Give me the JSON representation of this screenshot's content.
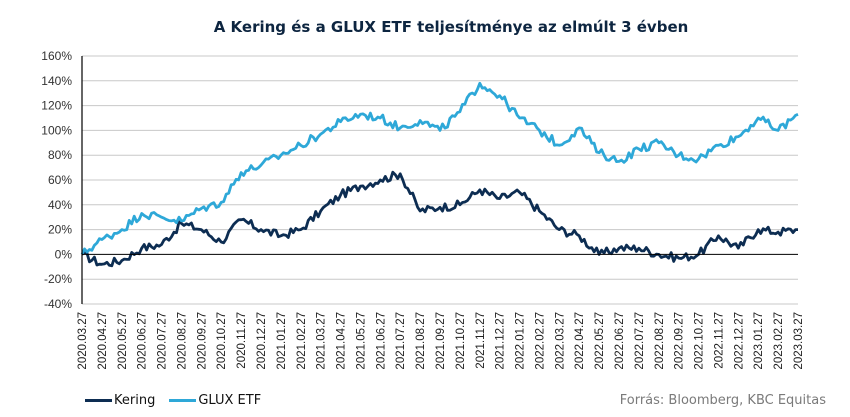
{
  "chart_data": {
    "type": "line",
    "title": "A Kering és a GLUX ETF teljesítménye  az elmúlt  3 évben",
    "xlabel": "",
    "ylabel": "",
    "ylim": [
      -40,
      160
    ],
    "y_ticks": [
      -40,
      -20,
      0,
      20,
      40,
      60,
      80,
      100,
      120,
      140,
      160
    ],
    "y_tick_format": "percent",
    "grid": true,
    "legend_position": "bottom-left",
    "x": [
      "2020.03.27",
      "2020.04.27",
      "2020.05.27",
      "2020.06.27",
      "2020.07.27",
      "2020.08.27",
      "2020.09.27",
      "2020.10.27",
      "2020.11.27",
      "2020.12.27",
      "2021.01.27",
      "2021.02.27",
      "2021.03.27",
      "2021.04.27",
      "2021.05.27",
      "2021.06.27",
      "2021.07.27",
      "2021.08.27",
      "2021.09.27",
      "2021.10.27",
      "2021.11.27",
      "2021.12.27",
      "2022.01.27",
      "2022.02.27",
      "2022.03.27",
      "2022.04.27",
      "2022.05.27",
      "2022.06.27",
      "2022.07.27",
      "2022.08.27",
      "2022.09.27",
      "2022.10.27",
      "2022.11.27",
      "2022.12.27",
      "2023.01.27",
      "2023.02.27",
      "2023.03.27"
    ],
    "series": [
      {
        "name": "Kering",
        "color": "#0d2d52",
        "values": [
          0,
          -8,
          -5,
          5,
          8,
          25,
          20,
          10,
          28,
          20,
          15,
          20,
          35,
          48,
          55,
          60,
          65,
          35,
          38,
          40,
          52,
          45,
          50,
          35,
          20,
          15,
          0,
          5,
          5,
          0,
          -3,
          0,
          15,
          5,
          20,
          18,
          20
        ]
      },
      {
        "name": "GLUX ETF",
        "color": "#2ea8d8",
        "values": [
          0,
          12,
          20,
          33,
          30,
          27,
          37,
          42,
          66,
          72,
          80,
          88,
          97,
          107,
          113,
          110,
          102,
          108,
          100,
          115,
          138,
          128,
          110,
          100,
          88,
          102,
          82,
          75,
          85,
          90,
          80,
          77,
          88,
          95,
          110,
          100,
          113
        ]
      }
    ]
  },
  "legend": {
    "items": [
      {
        "label": "Kering",
        "color": "#0d2d52"
      },
      {
        "label": "GLUX ETF",
        "color": "#2ea8d8"
      }
    ]
  },
  "source": "Forrás: Bloomberg,  KBC Equitas"
}
